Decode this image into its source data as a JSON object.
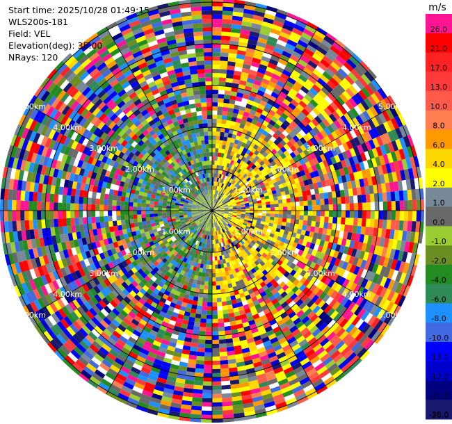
{
  "info": {
    "start_time": "Start time: 2025/10/28 01:49:15",
    "station": "WLS200s-181",
    "field": "Field: VEL",
    "elevation": "Elevation(deg): 35.00",
    "nrays": "NRays: 120"
  },
  "chart_data": {
    "type": "heatmap",
    "projection": "polar-ppi",
    "rays": 120,
    "range_rings_km": [
      1,
      2,
      3,
      4,
      5
    ],
    "ring_labels": [
      "1.00km",
      "2.00km",
      "3.00km",
      "4.00km",
      "5.00km"
    ],
    "colorbar": {
      "unit": "m/s",
      "bins": [
        {
          "label": "26.0",
          "color": "#ff1493"
        },
        {
          "label": "21.0",
          "color": "#ff0000"
        },
        {
          "label": "17.0",
          "color": "#ff2222"
        },
        {
          "label": "13.0",
          "color": "#ff3a3a"
        },
        {
          "label": "10.0",
          "color": "#ff5a4a"
        },
        {
          "label": "8.0",
          "color": "#ff7f50"
        },
        {
          "label": "6.0",
          "color": "#ff9900"
        },
        {
          "label": "4.0",
          "color": "#ffd700"
        },
        {
          "label": "2.0",
          "color": "#ffff00"
        },
        {
          "label": "1.0",
          "color": "#778899"
        },
        {
          "label": "0.0",
          "color": "#696969"
        },
        {
          "label": "-1.0",
          "color": "#9acd32"
        },
        {
          "label": "-2.0",
          "color": "#6b8e23"
        },
        {
          "label": "-4.0",
          "color": "#228b22"
        },
        {
          "label": "-6.0",
          "color": "#2e8b57"
        },
        {
          "label": "-8.0",
          "color": "#1e90ff"
        },
        {
          "label": "-10.0",
          "color": "#4169e1"
        },
        {
          "label": "-13.0",
          "color": "#0000ff"
        },
        {
          "label": "-17.0",
          "color": "#0000cd"
        },
        {
          "label": "-21.0",
          "color": "#000080"
        },
        {
          "label": "-26.0",
          "color": "#191970"
        },
        {
          "label": "-30.0",
          "color": "#191970"
        }
      ]
    }
  }
}
